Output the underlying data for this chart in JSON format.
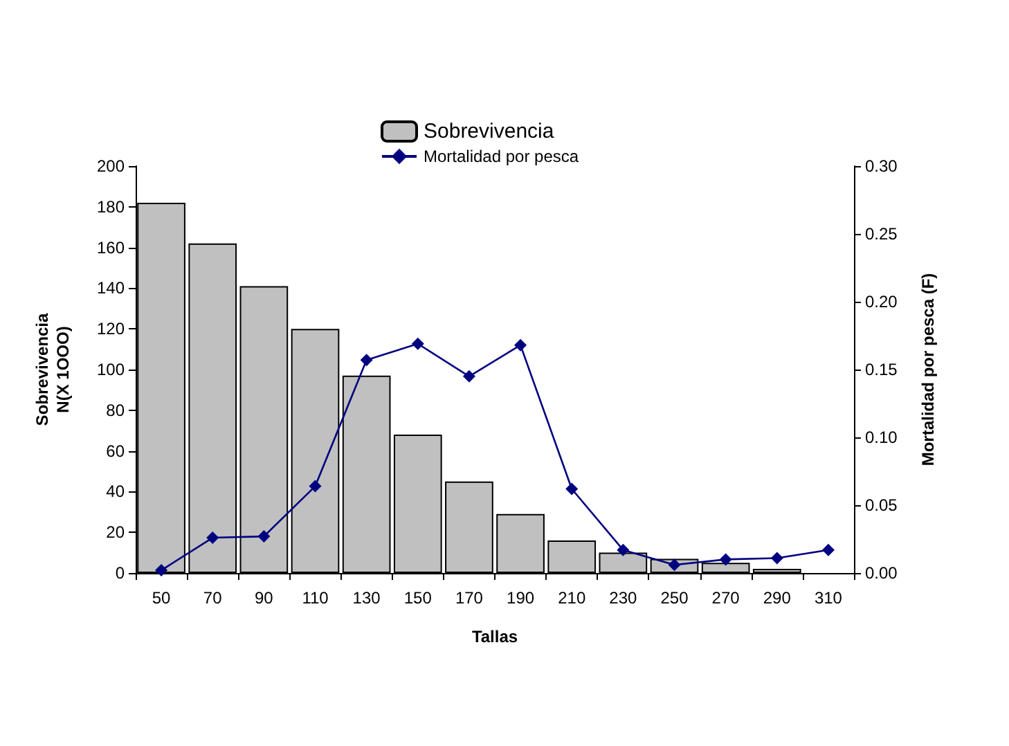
{
  "chart_data": {
    "type": "bar",
    "categories": [
      "50",
      "70",
      "90",
      "110",
      "130",
      "150",
      "170",
      "190",
      "210",
      "230",
      "250",
      "270",
      "290",
      "310"
    ],
    "xlabel": "Tallas",
    "ylabel": "Sobrevivencia\nN(X 1OOO)",
    "y2label": "Mortalidad por pesca (F)",
    "series": [
      {
        "name": "Sobrevivencia",
        "color": "#c0c0c0",
        "values": [
          182,
          162,
          141,
          120,
          97,
          68,
          45,
          29,
          16,
          10,
          7,
          5,
          2,
          null
        ]
      },
      {
        "name": "Mortalidad por pesca",
        "type": "line",
        "axis": "y2",
        "color": "#000080",
        "marker": "diamond",
        "values": [
          0.002,
          0.026,
          0.027,
          0.064,
          0.157,
          0.169,
          0.145,
          0.168,
          0.062,
          0.017,
          0.006,
          0.01,
          0.011,
          0.017
        ]
      }
    ],
    "ylim": [
      0,
      200
    ],
    "yticks": [
      0,
      20,
      40,
      60,
      80,
      100,
      120,
      140,
      160,
      180,
      200
    ],
    "y2lim": [
      0,
      0.3
    ],
    "y2ticks": [
      {
        "value": 0,
        "label": "0.00"
      },
      {
        "value": 0.05,
        "label": "0.05"
      },
      {
        "value": 0.1,
        "label": "0.10"
      },
      {
        "value": 0.15,
        "label": "0.15"
      },
      {
        "value": 0.2,
        "label": "0.20"
      },
      {
        "value": 0.25,
        "label": "0.25"
      },
      {
        "value": 0.3,
        "label": "0.30"
      }
    ],
    "grid": false,
    "legend": "top"
  }
}
